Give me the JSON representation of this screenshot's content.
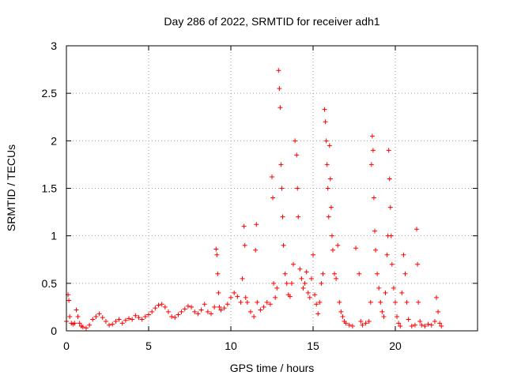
{
  "chart_data": {
    "type": "scatter",
    "title": "Day 286 of 2022, SRMTID for receiver adh1",
    "xlabel": "GPS time / hours",
    "ylabel": "SRMTID / TECUs",
    "xlim": [
      0,
      25
    ],
    "ylim": [
      0,
      3
    ],
    "x_ticks": [
      0,
      5,
      10,
      15,
      20
    ],
    "x_tick_labels": [
      "0",
      "5",
      "10",
      "15",
      "20"
    ],
    "y_ticks": [
      0,
      0.5,
      1,
      1.5,
      2,
      2.5,
      3
    ],
    "y_tick_labels": [
      "0",
      "0.5",
      "1",
      "1.5",
      "2",
      "2.5",
      "3"
    ],
    "grid": true,
    "marker": "plus",
    "color": "#ff0000",
    "series": [
      {
        "name": "adh1",
        "x": [
          0.0,
          0.1,
          0.15,
          0.2,
          0.3,
          0.4,
          0.5,
          0.6,
          0.7,
          0.8,
          0.9,
          1.0,
          1.2,
          1.4,
          1.6,
          1.8,
          2.0,
          2.2,
          2.4,
          2.6,
          2.8,
          3.0,
          3.2,
          3.4,
          3.6,
          3.8,
          4.0,
          4.2,
          4.4,
          4.6,
          4.8,
          5.0,
          5.2,
          5.4,
          5.6,
          5.8,
          6.0,
          6.2,
          6.4,
          6.6,
          6.8,
          7.0,
          7.2,
          7.4,
          7.6,
          7.8,
          8.0,
          8.2,
          8.4,
          8.6,
          8.8,
          9.0,
          9.1,
          9.15,
          9.2,
          9.25,
          9.3,
          9.4,
          9.6,
          9.8,
          10.0,
          10.2,
          10.4,
          10.6,
          10.7,
          10.8,
          10.85,
          10.9,
          11.0,
          11.2,
          11.4,
          11.5,
          11.55,
          11.6,
          11.8,
          12.0,
          12.2,
          12.4,
          12.5,
          12.55,
          12.6,
          12.7,
          12.8,
          12.9,
          12.95,
          13.0,
          13.05,
          13.1,
          13.15,
          13.2,
          13.3,
          13.4,
          13.5,
          13.6,
          13.7,
          13.8,
          13.9,
          14.0,
          14.05,
          14.1,
          14.2,
          14.3,
          14.4,
          14.5,
          14.6,
          14.7,
          14.8,
          14.9,
          15.0,
          15.1,
          15.2,
          15.3,
          15.4,
          15.5,
          15.6,
          15.7,
          15.75,
          15.8,
          15.85,
          15.9,
          15.95,
          16.0,
          16.05,
          16.1,
          16.15,
          16.2,
          16.3,
          16.4,
          16.5,
          16.6,
          16.7,
          16.8,
          16.9,
          17.0,
          17.2,
          17.4,
          17.6,
          17.8,
          17.9,
          18.0,
          18.2,
          18.4,
          18.5,
          18.55,
          18.6,
          18.65,
          18.7,
          18.75,
          18.8,
          18.9,
          19.0,
          19.1,
          19.2,
          19.3,
          19.4,
          19.5,
          19.55,
          19.6,
          19.65,
          19.7,
          19.75,
          19.8,
          19.9,
          20.0,
          20.1,
          20.2,
          20.3,
          20.4,
          20.5,
          20.6,
          20.7,
          20.8,
          21.0,
          21.2,
          21.3,
          21.35,
          21.4,
          21.5,
          21.6,
          21.8,
          22.0,
          22.2,
          22.4,
          22.5,
          22.6,
          22.7,
          22.8
        ],
        "y": [
          0.1,
          0.38,
          0.32,
          0.15,
          0.08,
          0.07,
          0.08,
          0.22,
          0.15,
          0.08,
          0.05,
          0.04,
          0.03,
          0.06,
          0.12,
          0.15,
          0.18,
          0.14,
          0.1,
          0.06,
          0.07,
          0.1,
          0.12,
          0.08,
          0.11,
          0.13,
          0.12,
          0.16,
          0.14,
          0.12,
          0.15,
          0.17,
          0.2,
          0.24,
          0.27,
          0.28,
          0.25,
          0.2,
          0.15,
          0.14,
          0.17,
          0.2,
          0.23,
          0.26,
          0.25,
          0.2,
          0.18,
          0.22,
          0.28,
          0.2,
          0.18,
          0.25,
          0.86,
          0.8,
          0.6,
          0.4,
          0.25,
          0.22,
          0.24,
          0.28,
          0.35,
          0.4,
          0.36,
          0.3,
          0.55,
          1.1,
          0.9,
          0.35,
          0.3,
          0.2,
          0.15,
          0.85,
          1.12,
          0.3,
          0.22,
          0.25,
          0.3,
          0.28,
          1.62,
          1.4,
          0.5,
          0.35,
          0.45,
          2.74,
          2.55,
          2.35,
          1.75,
          1.5,
          1.2,
          0.9,
          0.6,
          0.5,
          0.38,
          0.36,
          0.5,
          0.7,
          2.0,
          1.85,
          1.5,
          1.2,
          0.65,
          0.55,
          0.45,
          0.5,
          0.62,
          0.4,
          0.35,
          0.55,
          0.8,
          0.38,
          0.28,
          0.18,
          0.3,
          0.5,
          0.6,
          2.33,
          2.2,
          2.0,
          1.75,
          1.5,
          1.2,
          1.95,
          1.6,
          1.3,
          1.0,
          0.85,
          0.6,
          0.55,
          0.9,
          0.3,
          0.2,
          0.15,
          0.1,
          0.08,
          0.06,
          0.05,
          0.87,
          0.6,
          0.1,
          0.06,
          0.08,
          0.1,
          0.3,
          1.75,
          2.05,
          1.9,
          1.4,
          1.05,
          0.85,
          0.6,
          0.45,
          0.3,
          0.2,
          0.15,
          0.4,
          0.8,
          1.0,
          1.9,
          1.6,
          1.3,
          1.0,
          0.7,
          0.45,
          0.3,
          0.15,
          0.08,
          0.05,
          0.4,
          0.8,
          0.6,
          0.3,
          0.12,
          0.05,
          0.06,
          1.07,
          0.7,
          0.3,
          0.1,
          0.06,
          0.05,
          0.07,
          0.06,
          0.1,
          0.35,
          0.2,
          0.08,
          0.05
        ]
      }
    ]
  }
}
